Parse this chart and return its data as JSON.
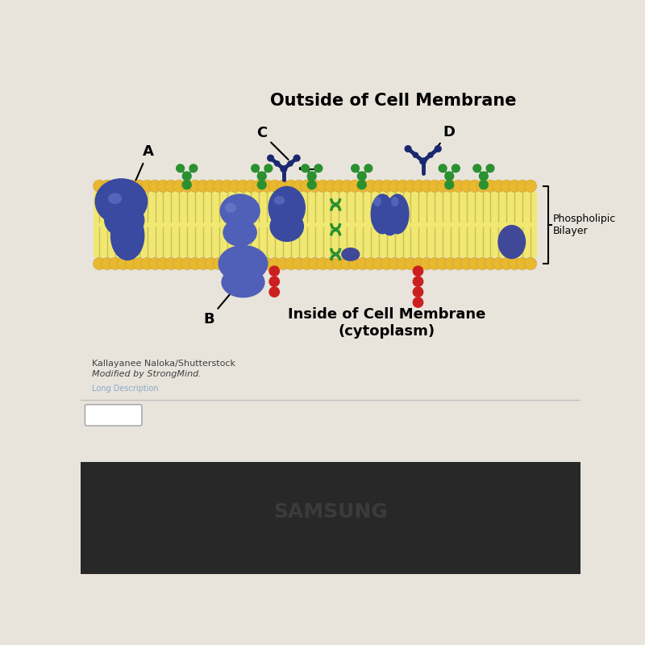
{
  "title": "Outside of Cell Membrane",
  "inside_label": "Inside of Cell Membrane\n(cytoplasm)",
  "phospholipid_label": "Phospholipic\nBilayer",
  "credit1": "Kallayanee Naloka/Shutterstock",
  "credit2": "Modified by StrongMind.",
  "bg_top": "#E8E4DC",
  "bg_bottom": "#E8E4DC",
  "gold": "#E8B830",
  "gold_dark": "#C89820",
  "tail_color": "#F0E080",
  "blue_dark": "#2A3580",
  "blue_mid": "#3A4AA0",
  "blue_light": "#4A5AB0",
  "blue_purple": "#5060B8",
  "green": "#2A9030",
  "red": "#CC2020",
  "gray_tail": "#D8D0A0",
  "label_fontsize": 13,
  "title_fontsize": 15
}
